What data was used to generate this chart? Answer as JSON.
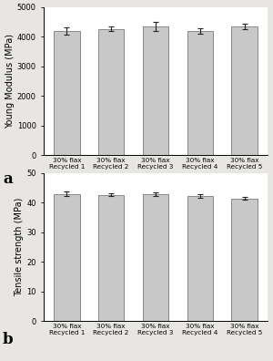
{
  "categories": [
    "30% flax\nRecycled 1",
    "30% flax\nRecycled 2",
    "30% flax\nRecycled 3",
    "30% flax\nRecycled 4",
    "30% flax\nRecycled 5"
  ],
  "modulus_values": [
    4200,
    4270,
    4340,
    4200,
    4360
  ],
  "modulus_errors": [
    120,
    80,
    150,
    100,
    90
  ],
  "modulus_ylim": [
    0,
    5000
  ],
  "modulus_yticks": [
    0,
    1000,
    2000,
    3000,
    4000,
    5000
  ],
  "modulus_ylabel": "Young Modulus (MPa)",
  "strength_values": [
    43.0,
    42.7,
    43.0,
    42.3,
    41.5
  ],
  "strength_errors": [
    0.8,
    0.5,
    0.6,
    0.5,
    0.4
  ],
  "strength_ylim": [
    0,
    50
  ],
  "strength_yticks": [
    0,
    10,
    20,
    30,
    40,
    50
  ],
  "strength_ylabel": "Tensile strength (MPa)",
  "bar_color": "#c8c8c8",
  "bar_edgecolor": "#666666",
  "error_color": "#222222",
  "label_a": "a",
  "label_b": "b",
  "background_color": "#e8e6e2",
  "tick_fontsize": 6.0,
  "label_fontsize": 7.0,
  "cat_fontsize": 5.2
}
